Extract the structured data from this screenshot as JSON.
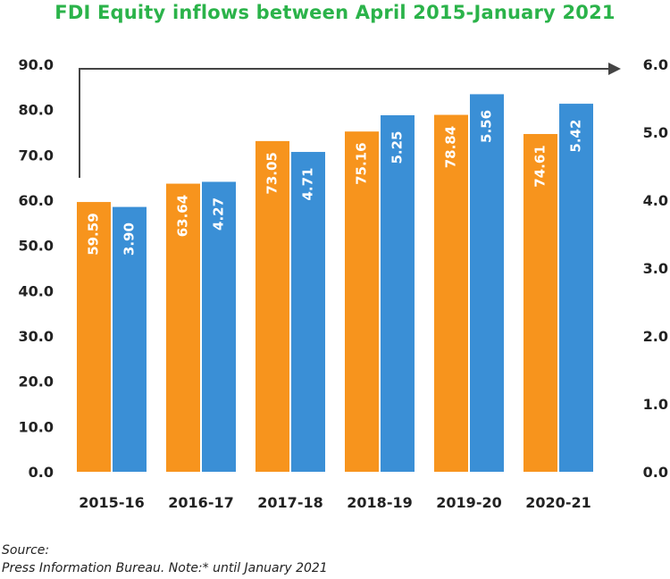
{
  "chart_data": {
    "type": "bar",
    "title": "FDI Equity inflows between April 2015-January 2021",
    "categories": [
      "2015-16",
      "2016-17",
      "2017-18",
      "2018-19",
      "2019-20",
      "2020-21"
    ],
    "series": [
      {
        "axis": "left",
        "color": "#f7941d",
        "values": [
          59.59,
          63.64,
          73.05,
          75.16,
          78.84,
          74.61
        ],
        "labels": [
          "59.59",
          "63.64",
          "73.05",
          "75.16",
          "78.84",
          "74.61"
        ]
      },
      {
        "axis": "right",
        "color": "#3a8fd6",
        "values": [
          3.9,
          4.27,
          4.71,
          5.25,
          5.56,
          5.42
        ],
        "labels": [
          "3.90",
          "4.27",
          "4.71",
          "5.25",
          "5.56",
          "5.42"
        ]
      }
    ],
    "left_axis": {
      "ylim": [
        0,
        90
      ],
      "ticks": [
        "0.0",
        "10.0",
        "20.0",
        "30.0",
        "40.0",
        "50.0",
        "60.0",
        "70.0",
        "80.0",
        "90.0"
      ]
    },
    "right_axis": {
      "ylim": [
        0,
        6
      ],
      "ticks": [
        "0.0",
        "1.0",
        "2.0",
        "3.0",
        "4.0",
        "5.0",
        "6.0"
      ]
    },
    "grid": false,
    "legend": "none",
    "trend_arrow": true
  },
  "footer": {
    "source_label": "Source:",
    "note": "Press Information Bureau. Note:* until January 2021"
  }
}
